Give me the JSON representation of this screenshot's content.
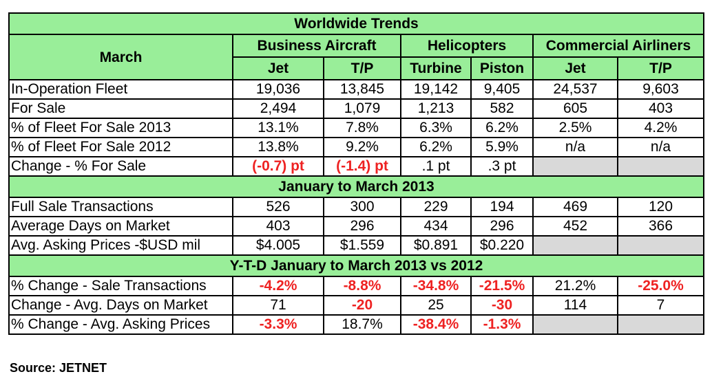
{
  "title": "Worldwide Trends",
  "header": {
    "period": "March",
    "groups": [
      "Business Aircraft",
      "Helicopters",
      "Commercial Airliners"
    ],
    "subcolumns": [
      "Jet",
      "T/P",
      "Turbine",
      "Piston",
      "Jet",
      "T/P"
    ]
  },
  "section1": {
    "rows": [
      {
        "label": "In-Operation Fleet",
        "values": [
          "19,036",
          "13,845",
          "19,142",
          "9,405",
          "24,537",
          "9,603"
        ]
      },
      {
        "label": "For Sale",
        "values": [
          "2,494",
          "1,079",
          "1,213",
          "582",
          "605",
          "403"
        ]
      },
      {
        "label": "% of Fleet For Sale 2013",
        "values": [
          "13.1%",
          "7.8%",
          "6.3%",
          "6.2%",
          "2.5%",
          "4.2%"
        ]
      },
      {
        "label": "% of Fleet For Sale 2012",
        "values": [
          "13.8%",
          "9.2%",
          "6.2%",
          "5.9%",
          "n/a",
          "n/a"
        ]
      },
      {
        "label": "Change - % For Sale",
        "values": [
          "(-0.7) pt",
          "(-1.4) pt",
          ".1 pt",
          ".3 pt",
          "",
          ""
        ]
      }
    ]
  },
  "section2": {
    "heading": "January to March 2013",
    "rows": [
      {
        "label": "Full Sale Transactions",
        "values": [
          "526",
          "300",
          "229",
          "194",
          "469",
          "120"
        ]
      },
      {
        "label": "Average Days on Market",
        "values": [
          "403",
          "296",
          "434",
          "296",
          "452",
          "366"
        ]
      },
      {
        "label": "Avg. Asking Prices -$USD mil",
        "values": [
          "$4.005",
          "$1.559",
          "$0.891",
          "$0.220",
          "",
          ""
        ]
      }
    ]
  },
  "section3": {
    "heading": "Y-T-D January to March 2013 vs 2012",
    "rows": [
      {
        "label": "% Change  - Sale Transactions",
        "values": [
          "-4.2%",
          "-8.8%",
          "-34.8%",
          "-21.5%",
          "21.2%",
          "-25.0%"
        ]
      },
      {
        "label": "Change -  Avg. Days on Market",
        "values": [
          "71",
          "-20",
          "25",
          "-30",
          "114",
          "7"
        ]
      },
      {
        "label": "% Change - Avg. Asking Prices",
        "values": [
          "-3.3%",
          "18.7%",
          "-38.4%",
          "-1.3%",
          "",
          ""
        ]
      }
    ]
  },
  "source": "Source: JETNET",
  "colors": {
    "header_bg": "#99ee99",
    "empty_bg": "#d9d9d9",
    "negative": "#ee2222"
  }
}
